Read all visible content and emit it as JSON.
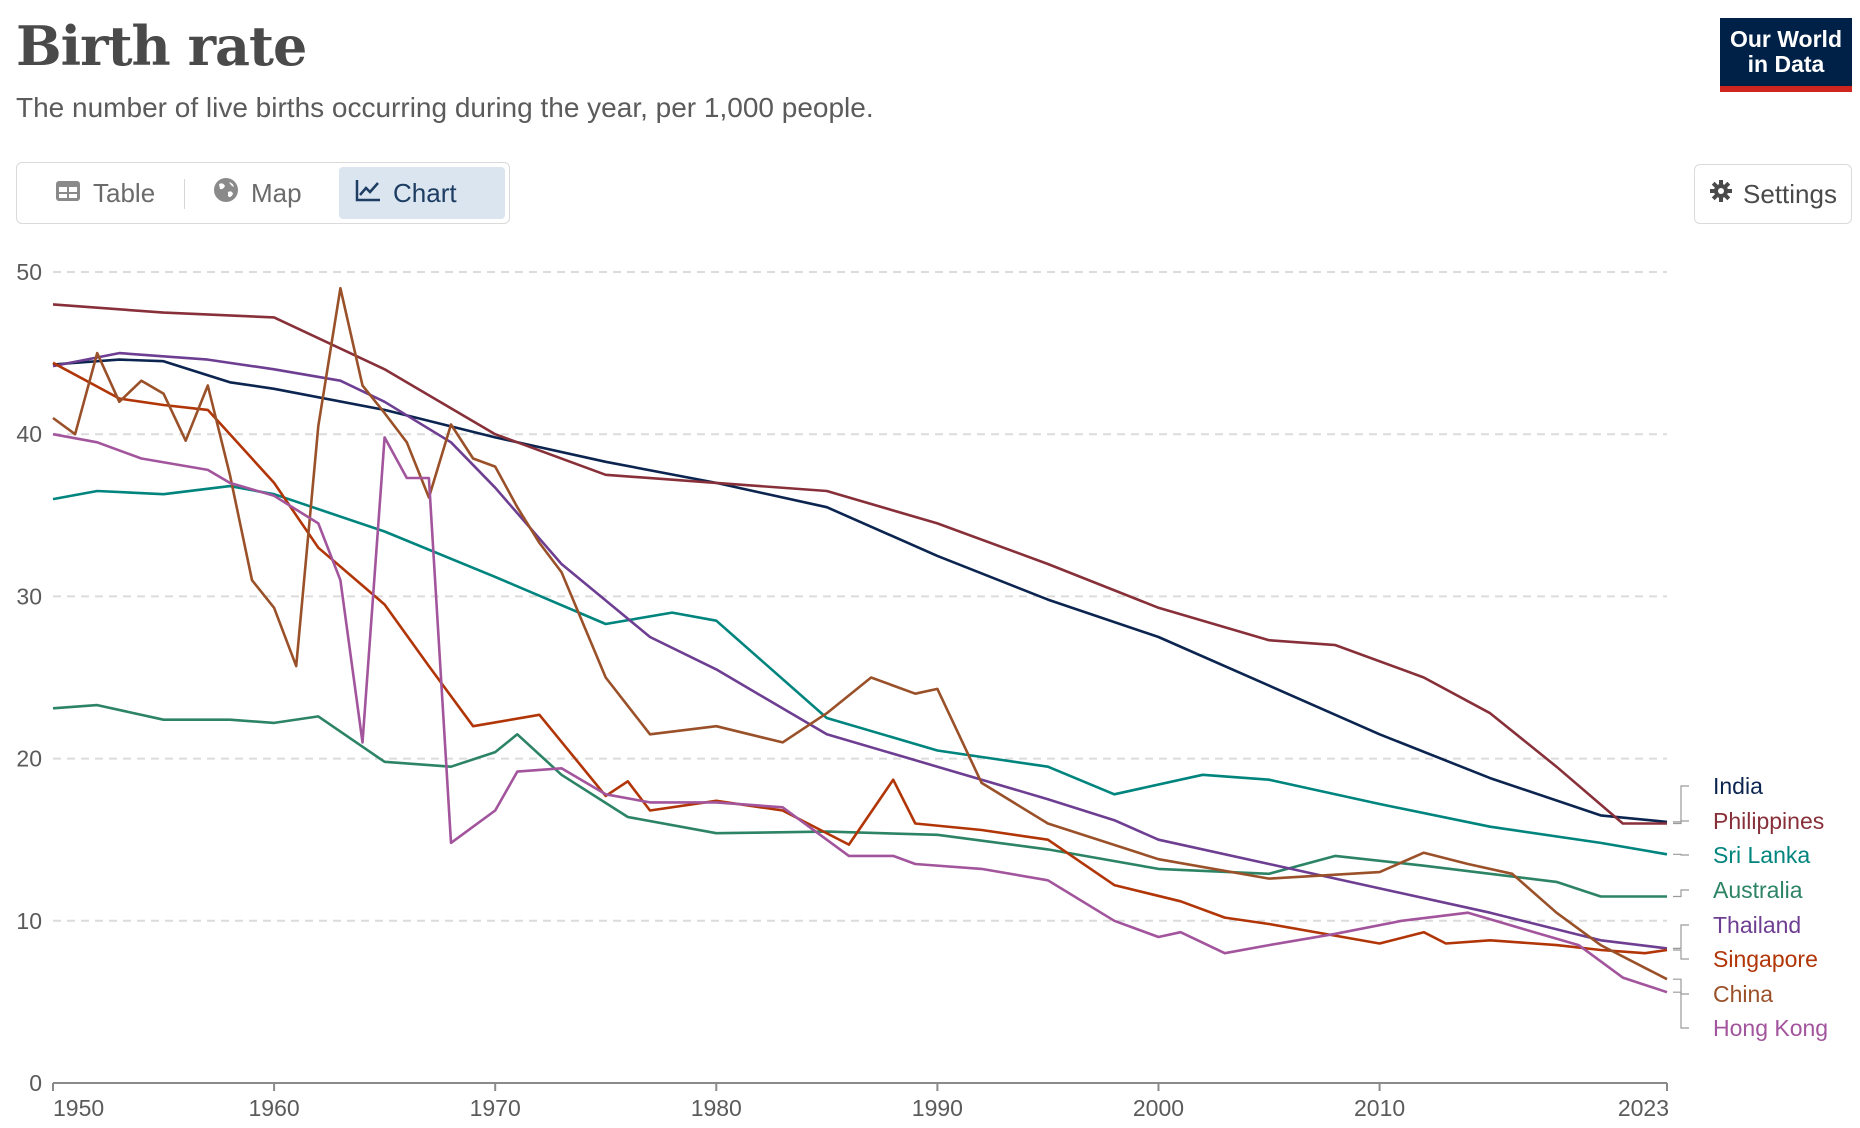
{
  "header": {
    "title": "Birth rate",
    "subtitle": "The number of live births occurring during the year, per 1,000 people.",
    "logo_line1": "Our World",
    "logo_line2": "in Data"
  },
  "tabs": [
    {
      "label": "Table",
      "icon": "table-icon",
      "active": false
    },
    {
      "label": "Map",
      "icon": "globe-icon",
      "active": false
    },
    {
      "label": "Chart",
      "icon": "line-chart-icon",
      "active": true
    }
  ],
  "settings": {
    "label": "Settings",
    "icon": "gear-icon"
  },
  "colors": {
    "accent": "#1d3d63",
    "logo_bg": "#002147",
    "logo_stripe": "#ce261e"
  },
  "chart_data": {
    "type": "line",
    "title": "Birth rate",
    "xlim": [
      1950,
      2023
    ],
    "ylim": [
      0,
      50
    ],
    "yticks": [
      0,
      10,
      20,
      30,
      40,
      50
    ],
    "xticks": [
      1950,
      1960,
      1970,
      1980,
      1990,
      2000,
      2010,
      2023
    ],
    "grid": "horizontal dashed",
    "legend": "right, end-of-line labels",
    "series": [
      {
        "name": "India",
        "color": "#0b2550",
        "x": [
          1950,
          1953,
          1955,
          1958,
          1960,
          1965,
          1970,
          1975,
          1980,
          1985,
          1990,
          1995,
          2000,
          2005,
          2010,
          2015,
          2020,
          2023
        ],
        "values": [
          44.3,
          44.6,
          44.5,
          43.2,
          42.8,
          41.5,
          39.8,
          38.3,
          37.0,
          35.5,
          32.5,
          29.8,
          27.5,
          24.5,
          21.5,
          18.8,
          16.5,
          16.1
        ]
      },
      {
        "name": "Philippines",
        "color": "#883039",
        "x": [
          1950,
          1955,
          1960,
          1965,
          1970,
          1975,
          1980,
          1985,
          1990,
          1995,
          2000,
          2005,
          2008,
          2012,
          2015,
          2018,
          2021,
          2023
        ],
        "values": [
          48.0,
          47.5,
          47.2,
          44.0,
          40.0,
          37.5,
          37.0,
          36.5,
          34.5,
          32.0,
          29.3,
          27.3,
          27.0,
          25.0,
          22.8,
          19.5,
          16.0,
          16.0
        ]
      },
      {
        "name": "Sri Lanka",
        "color": "#00847e",
        "x": [
          1950,
          1952,
          1955,
          1958,
          1960,
          1965,
          1970,
          1975,
          1978,
          1980,
          1985,
          1990,
          1995,
          1998,
          2002,
          2005,
          2010,
          2015,
          2020,
          2023
        ],
        "values": [
          36.0,
          36.5,
          36.3,
          36.8,
          36.3,
          34.0,
          31.2,
          28.3,
          29.0,
          28.5,
          22.5,
          20.5,
          19.5,
          17.8,
          19.0,
          18.7,
          17.2,
          15.8,
          14.8,
          14.1
        ]
      },
      {
        "name": "Australia",
        "color": "#2c8465",
        "x": [
          1950,
          1952,
          1955,
          1958,
          1960,
          1962,
          1965,
          1968,
          1970,
          1971,
          1973,
          1976,
          1980,
          1985,
          1990,
          1995,
          2000,
          2005,
          2008,
          2012,
          2015,
          2018,
          2020,
          2023
        ],
        "values": [
          23.1,
          23.3,
          22.4,
          22.4,
          22.2,
          22.6,
          19.8,
          19.5,
          20.4,
          21.5,
          19.0,
          16.4,
          15.4,
          15.5,
          15.3,
          14.4,
          13.2,
          12.9,
          14.0,
          13.4,
          12.9,
          12.4,
          11.5,
          11.5
        ]
      },
      {
        "name": "Thailand",
        "color": "#6d3e91",
        "x": [
          1950,
          1953,
          1957,
          1960,
          1963,
          1965,
          1968,
          1970,
          1973,
          1977,
          1980,
          1985,
          1990,
          1995,
          1998,
          2000,
          2005,
          2010,
          2015,
          2020,
          2023
        ],
        "values": [
          44.2,
          45.0,
          44.6,
          44.0,
          43.3,
          42.0,
          39.5,
          36.7,
          32.0,
          27.5,
          25.5,
          21.5,
          19.5,
          17.5,
          16.2,
          15.0,
          13.5,
          12.0,
          10.5,
          8.8,
          8.3
        ]
      },
      {
        "name": "Singapore",
        "color": "#b13507",
        "x": [
          1950,
          1953,
          1955,
          1957,
          1960,
          1962,
          1965,
          1967,
          1969,
          1972,
          1975,
          1976,
          1977,
          1980,
          1983,
          1986,
          1988,
          1989,
          1992,
          1995,
          1998,
          2001,
          2003,
          2005,
          2010,
          2012,
          2013,
          2015,
          2018,
          2020,
          2022,
          2023
        ],
        "values": [
          44.4,
          42.2,
          41.8,
          41.5,
          37.0,
          33.0,
          29.5,
          25.7,
          22.0,
          22.7,
          17.7,
          18.6,
          16.8,
          17.4,
          16.8,
          14.7,
          18.7,
          16.0,
          15.6,
          15.0,
          12.2,
          11.2,
          10.2,
          9.8,
          8.6,
          9.3,
          8.6,
          8.8,
          8.5,
          8.2,
          8.0,
          8.2
        ]
      },
      {
        "name": "China",
        "color": "#9a5129",
        "x": [
          1950,
          1951,
          1952,
          1953,
          1954,
          1955,
          1956,
          1957,
          1958,
          1959,
          1960,
          1961,
          1962,
          1963,
          1964,
          1965,
          1966,
          1967,
          1968,
          1969,
          1970,
          1971,
          1972,
          1973,
          1975,
          1977,
          1980,
          1983,
          1985,
          1987,
          1989,
          1990,
          1992,
          1995,
          2000,
          2005,
          2010,
          2012,
          2014,
          2016,
          2018,
          2020,
          2023
        ],
        "values": [
          41.0,
          40.0,
          45.0,
          42.0,
          43.3,
          42.5,
          39.6,
          43.0,
          37.5,
          31.0,
          29.3,
          25.7,
          40.5,
          49.0,
          43.0,
          41.3,
          39.5,
          36.1,
          40.6,
          38.5,
          38.0,
          35.5,
          33.3,
          31.5,
          25.0,
          21.5,
          22.0,
          21.0,
          22.8,
          25.0,
          24.0,
          24.3,
          18.5,
          16.0,
          13.8,
          12.6,
          13.0,
          14.2,
          13.5,
          12.9,
          10.5,
          8.5,
          6.4
        ]
      },
      {
        "name": "Hong Kong",
        "color": "#a2559c",
        "x": [
          1950,
          1952,
          1954,
          1957,
          1958,
          1960,
          1962,
          1963,
          1964,
          1965,
          1966,
          1967,
          1968,
          1969,
          1970,
          1971,
          1973,
          1975,
          1977,
          1980,
          1983,
          1986,
          1988,
          1989,
          1992,
          1995,
          1998,
          2000,
          2001,
          2003,
          2005,
          2008,
          2011,
          2014,
          2017,
          2019,
          2021,
          2023
        ],
        "values": [
          40.0,
          39.5,
          38.5,
          37.8,
          37.0,
          36.2,
          34.5,
          31.0,
          21.0,
          39.8,
          37.3,
          37.3,
          14.8,
          15.8,
          16.8,
          19.2,
          19.4,
          17.8,
          17.3,
          17.3,
          17.0,
          14.0,
          14.0,
          13.5,
          13.2,
          12.5,
          10.0,
          9.0,
          9.3,
          8.0,
          8.5,
          9.2,
          10.0,
          10.5,
          9.3,
          8.5,
          6.5,
          5.6
        ]
      }
    ]
  }
}
